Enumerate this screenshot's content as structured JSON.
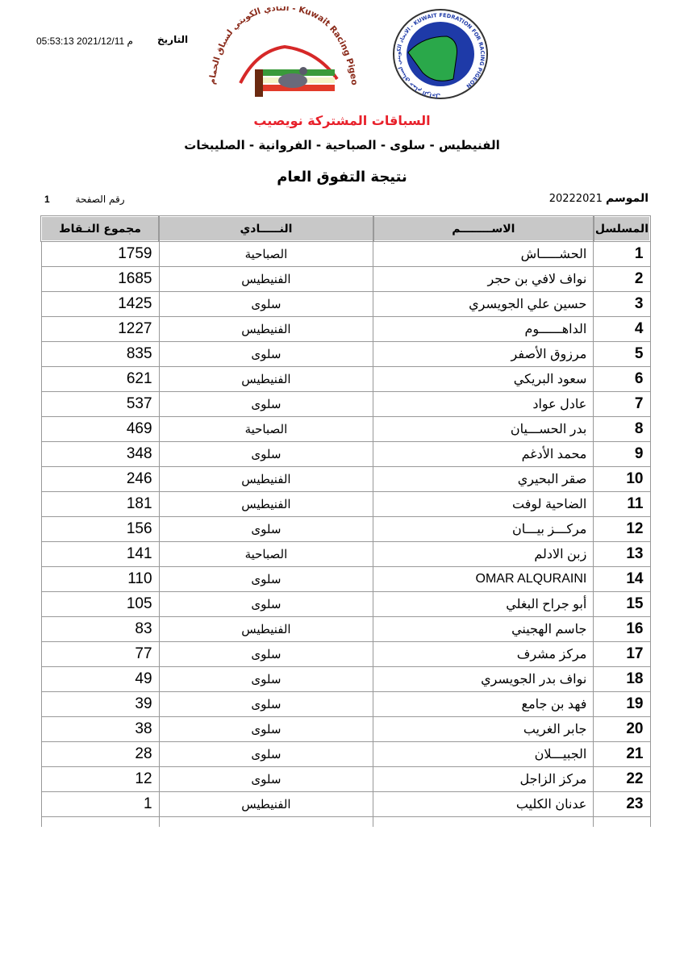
{
  "header": {
    "date_label": "التاريخ",
    "date_value": "05:53:13 2021/12/11 م",
    "club_logo_text": "النادي الكويتي لسباق الحمام الزاجل - Kuwait Racing Pigeon Club",
    "federation_logo_text": "الاتحاد الكويتي لسباق حمام الزاجل - KUWAIT FEDRATION FOR RACING PIGEON",
    "race_title": "السباقات المشتركة نويصيب",
    "clubs_line": "الفنيطيس - سلوى - الصباحية - الفروانية - الصليبخات",
    "main_title": "نتيجة التفوق العام",
    "season_label": "الموسم",
    "season_value": "20222021",
    "page_label": "رقم الصفحة",
    "page_value": "1"
  },
  "colors": {
    "title_red": "#e8212b",
    "header_gray": "#c8c8c8"
  },
  "table": {
    "columns": [
      "المسلسل",
      "الاســــــــم",
      "النـــــادي",
      "مجموع النـقاط"
    ],
    "rows": [
      [
        "1",
        "الحشـــــاش",
        "الصباحية",
        "1759"
      ],
      [
        "2",
        "نواف لافي بن حجر",
        "الفنيطيس",
        "1685"
      ],
      [
        "3",
        "حسين علي الجويسري",
        "سلوى",
        "1425"
      ],
      [
        "4",
        "الداهــــــوم",
        "الفنيطيس",
        "1227"
      ],
      [
        "5",
        "مرزوق الأصفر",
        "سلوى",
        "835"
      ],
      [
        "6",
        "سعود البريكي",
        "الفنيطيس",
        "621"
      ],
      [
        "7",
        "عادل عواد",
        "سلوى",
        "537"
      ],
      [
        "8",
        "بدر الحســـيان",
        "الصباحية",
        "469"
      ],
      [
        "9",
        "محمد الأدغم",
        "سلوى",
        "348"
      ],
      [
        "10",
        "صقر البحيري",
        "الفنيطيس",
        "246"
      ],
      [
        "11",
        "الضاحية لوفت",
        "الفنيطيس",
        "181"
      ],
      [
        "12",
        "مركـــز بيـــان",
        "سلوى",
        "156"
      ],
      [
        "13",
        "زبن الادلم",
        "الصباحية",
        "141"
      ],
      [
        "14",
        "OMAR ALQURAINI",
        "سلوى",
        "110"
      ],
      [
        "15",
        "أبو جراح البغلي",
        "سلوى",
        "105"
      ],
      [
        "16",
        "جاسم الهجيني",
        "الفنيطيس",
        "83"
      ],
      [
        "17",
        "مركز مشرف",
        "سلوى",
        "77"
      ],
      [
        "18",
        "نواف بدر الجويسري",
        "سلوى",
        "49"
      ],
      [
        "19",
        "فهد بن جامع",
        "سلوى",
        "39"
      ],
      [
        "20",
        "جابر الغريب",
        "سلوى",
        "38"
      ],
      [
        "21",
        "الجبيـــلان",
        "سلوى",
        "28"
      ],
      [
        "22",
        "مركز الزاجل",
        "سلوى",
        "12"
      ],
      [
        "23",
        "عدنان الكليب",
        "الفنيطيس",
        "1"
      ]
    ]
  }
}
